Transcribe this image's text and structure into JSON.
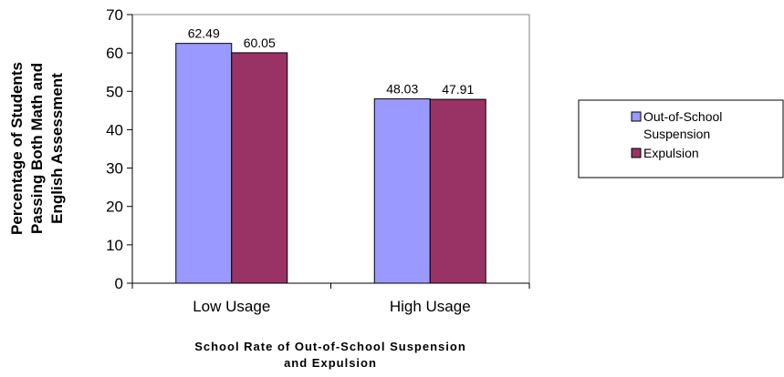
{
  "chart_data": {
    "type": "bar",
    "categories": [
      "Low Usage",
      "High Usage"
    ],
    "series": [
      {
        "name": "Out-of-School Suspension",
        "values": [
          62.49,
          48.03
        ],
        "color": "#9999ff"
      },
      {
        "name": "Expulsion",
        "values": [
          60.05,
          47.91
        ],
        "color": "#993366"
      }
    ],
    "data_labels": [
      [
        "62.49",
        "48.03"
      ],
      [
        "60.05",
        "47.91"
      ]
    ],
    "yticks": [
      0,
      10,
      20,
      30,
      40,
      50,
      60,
      70
    ],
    "ylim": [
      0,
      70
    ],
    "ylabel_lines": [
      "Percentage of Students",
      "Passing Both Math and",
      "English Assessment"
    ],
    "xlabel_lines": [
      "School Rate of Out-of-School Suspension",
      "and Expulsion"
    ],
    "legend": {
      "position": "right",
      "lines": [
        [
          "Out-of-School",
          "Suspension"
        ],
        [
          "Expulsion"
        ]
      ]
    },
    "grid": false
  }
}
